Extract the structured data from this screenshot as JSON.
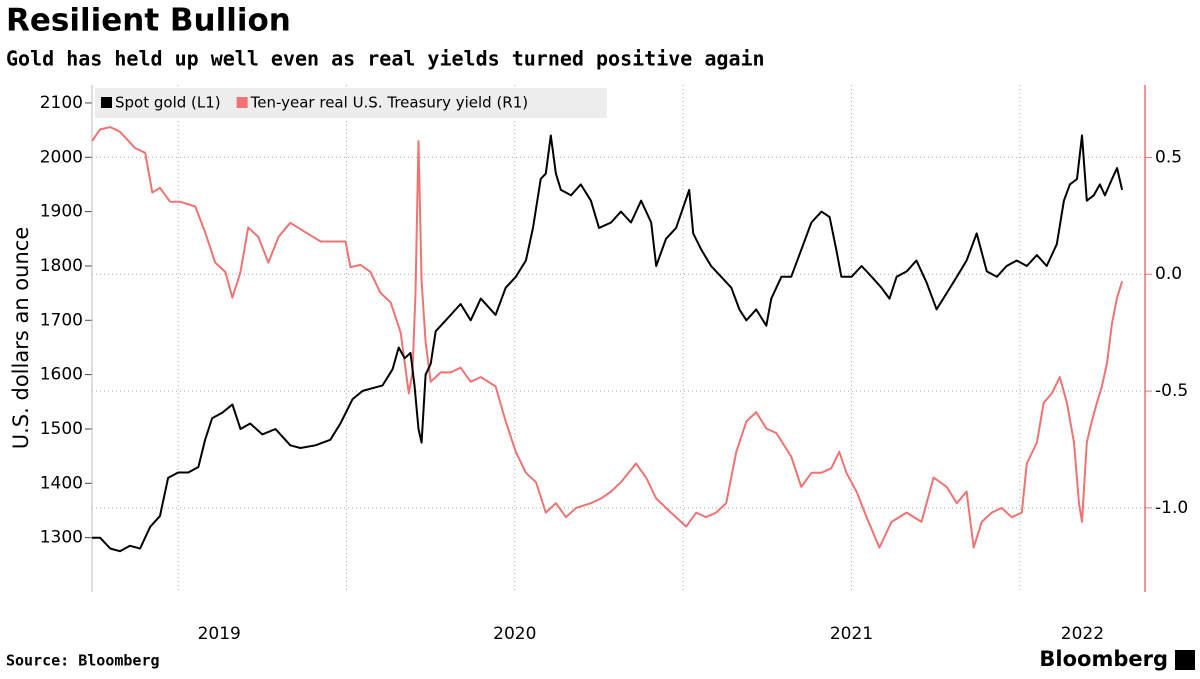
{
  "chart_data": {
    "type": "line",
    "title": "Resilient Bullion",
    "subtitle": "Gold has held up well even as real yields turned positive again",
    "ylabel": "U.S. dollars an ounce",
    "source": "Source: Bloomberg",
    "brand": "Bloomberg",
    "xlim": [
      2019.244,
      2022.372
    ],
    "xticks": [
      2019,
      2020,
      2021,
      2022
    ],
    "x_gridlines": [
      2019.5,
      2020,
      2020.5,
      2021,
      2021.5,
      2022
    ],
    "ylim": [
      1200,
      2133
    ],
    "yticks": [
      1300,
      1400,
      1500,
      1600,
      1700,
      1800,
      1900,
      2000,
      2100
    ],
    "y2lim": [
      -1.36,
      0.81
    ],
    "y2ticks": [
      0.5,
      {
        "value": 0,
        "label": "0.0"
      },
      -0.5,
      {
        "value": -1,
        "label": "-1.0"
      }
    ],
    "grid": true,
    "legend": "top-left",
    "series": [
      {
        "name": "Spot gold (L1)",
        "color": "#000000",
        "axis": "y",
        "x": [
          2019.244,
          2019.268,
          2019.298,
          2019.327,
          2019.357,
          2019.387,
          2019.417,
          2019.446,
          2019.47,
          2019.5,
          2019.53,
          2019.56,
          2019.58,
          2019.601,
          2019.631,
          2019.661,
          2019.685,
          2019.714,
          2019.75,
          2019.789,
          2019.833,
          2019.863,
          2019.908,
          2019.952,
          2019.982,
          2020.018,
          2020.048,
          2020.077,
          2020.107,
          2020.137,
          2020.155,
          2020.173,
          2020.19,
          2020.202,
          2020.214,
          2020.223,
          2020.235,
          2020.25,
          2020.265,
          2020.295,
          2020.339,
          2020.369,
          2020.399,
          2020.443,
          2020.473,
          2020.503,
          2020.533,
          2020.554,
          2020.577,
          2020.592,
          2020.607,
          2020.622,
          2020.637,
          2020.667,
          2020.696,
          2020.726,
          2020.75,
          2020.786,
          2020.815,
          2020.845,
          2020.875,
          2020.905,
          2020.92,
          2020.949,
          2020.979,
          2021.018,
          2021.03,
          2021.054,
          2021.083,
          2021.113,
          2021.143,
          2021.167,
          2021.188,
          2021.217,
          2021.247,
          2021.262,
          2021.292,
          2021.321,
          2021.351,
          2021.381,
          2021.411,
          2021.435,
          2021.455,
          2021.47,
          2021.5,
          2021.53,
          2021.56,
          2021.589,
          2021.613,
          2021.634,
          2021.664,
          2021.693,
          2021.723,
          2021.753,
          2021.783,
          2021.813,
          2021.842,
          2021.872,
          2021.902,
          2021.932,
          2021.961,
          2021.991,
          2022.021,
          2022.051,
          2022.08,
          2022.11,
          2022.131,
          2022.149,
          2022.17,
          2022.185,
          2022.199,
          2022.22,
          2022.238,
          2022.253,
          2022.274,
          2022.289,
          2022.304
        ],
        "values": [
          1300,
          1300,
          1280,
          1275,
          1285,
          1280,
          1320,
          1340,
          1410,
          1420,
          1420,
          1430,
          1480,
          1520,
          1530,
          1545,
          1500,
          1510,
          1490,
          1500,
          1470,
          1465,
          1470,
          1480,
          1510,
          1555,
          1570,
          1575,
          1580,
          1610,
          1650,
          1630,
          1640,
          1580,
          1500,
          1475,
          1600,
          1620,
          1680,
          1700,
          1730,
          1700,
          1740,
          1710,
          1760,
          1780,
          1810,
          1870,
          1960,
          1970,
          2040,
          1970,
          1940,
          1930,
          1950,
          1920,
          1870,
          1880,
          1900,
          1880,
          1920,
          1880,
          1800,
          1850,
          1870,
          1940,
          1860,
          1830,
          1800,
          1780,
          1760,
          1720,
          1700,
          1720,
          1690,
          1740,
          1780,
          1780,
          1830,
          1880,
          1900,
          1890,
          1830,
          1780,
          1780,
          1800,
          1780,
          1760,
          1740,
          1780,
          1790,
          1810,
          1770,
          1720,
          1750,
          1780,
          1810,
          1860,
          1790,
          1780,
          1800,
          1810,
          1800,
          1820,
          1800,
          1840,
          1920,
          1950,
          1960,
          2040,
          1920,
          1930,
          1950,
          1930,
          1960,
          1980,
          1940
        ]
      },
      {
        "name": "Ten-year real U.S. Treasury yield (R1)",
        "color": "#f07373",
        "axis": "y2",
        "x": [
          2019.244,
          2019.268,
          2019.298,
          2019.327,
          2019.372,
          2019.402,
          2019.423,
          2019.446,
          2019.476,
          2019.506,
          2019.551,
          2019.58,
          2019.61,
          2019.64,
          2019.661,
          2019.685,
          2019.708,
          2019.738,
          2019.768,
          2019.798,
          2019.833,
          2019.878,
          2019.923,
          2019.967,
          2019.997,
          2020.012,
          2020.042,
          2020.071,
          2020.101,
          2020.131,
          2020.161,
          2020.185,
          2020.196,
          2020.205,
          2020.214,
          2020.223,
          2020.235,
          2020.25,
          2020.28,
          2020.31,
          2020.339,
          2020.369,
          2020.399,
          2020.443,
          2020.473,
          2020.503,
          2020.533,
          2020.563,
          2020.592,
          2020.622,
          2020.652,
          2020.682,
          2020.726,
          2020.756,
          2020.786,
          2020.815,
          2020.86,
          2020.89,
          2020.92,
          2020.964,
          2021.009,
          2021.039,
          2021.068,
          2021.098,
          2021.128,
          2021.158,
          2021.188,
          2021.217,
          2021.247,
          2021.277,
          2021.321,
          2021.351,
          2021.381,
          2021.411,
          2021.44,
          2021.464,
          2021.485,
          2021.515,
          2021.545,
          2021.583,
          2021.619,
          2021.664,
          2021.708,
          2021.744,
          2021.783,
          2021.813,
          2021.842,
          2021.863,
          2021.887,
          2021.917,
          2021.946,
          2021.976,
          2022.006,
          2022.021,
          2022.051,
          2022.071,
          2022.095,
          2022.119,
          2022.14,
          2022.161,
          2022.176,
          2022.185,
          2022.199,
          2022.214,
          2022.229,
          2022.244,
          2022.259,
          2022.274,
          2022.289,
          2022.304
        ],
        "values": [
          0.57,
          0.62,
          0.63,
          0.61,
          0.54,
          0.52,
          0.35,
          0.37,
          0.31,
          0.31,
          0.29,
          0.18,
          0.05,
          0.01,
          -0.1,
          0.01,
          0.2,
          0.16,
          0.05,
          0.16,
          0.22,
          0.18,
          0.14,
          0.14,
          0.14,
          0.03,
          0.04,
          0.01,
          -0.08,
          -0.12,
          -0.25,
          -0.51,
          -0.42,
          -0.08,
          0.57,
          -0.03,
          -0.29,
          -0.46,
          -0.42,
          -0.42,
          -0.4,
          -0.46,
          -0.44,
          -0.48,
          -0.63,
          -0.76,
          -0.85,
          -0.89,
          -1.02,
          -0.98,
          -1.04,
          -1.0,
          -0.98,
          -0.96,
          -0.93,
          -0.89,
          -0.81,
          -0.87,
          -0.96,
          -1.02,
          -1.08,
          -1.02,
          -1.04,
          -1.02,
          -0.98,
          -0.76,
          -0.63,
          -0.59,
          -0.66,
          -0.68,
          -0.78,
          -0.91,
          -0.85,
          -0.85,
          -0.83,
          -0.76,
          -0.85,
          -0.93,
          -1.04,
          -1.17,
          -1.06,
          -1.02,
          -1.06,
          -0.87,
          -0.91,
          -0.98,
          -0.93,
          -1.17,
          -1.06,
          -1.02,
          -1.0,
          -1.04,
          -1.02,
          -0.81,
          -0.72,
          -0.55,
          -0.51,
          -0.44,
          -0.55,
          -0.72,
          -0.98,
          -1.06,
          -0.72,
          -0.63,
          -0.55,
          -0.48,
          -0.38,
          -0.21,
          -0.1,
          -0.03
        ]
      }
    ]
  }
}
